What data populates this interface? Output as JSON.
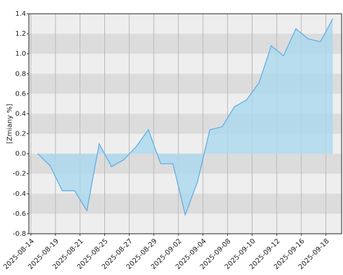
{
  "chart_data": {
    "type": "area",
    "y_label": "[Zmiany %]",
    "categories": [
      "2025-08-14",
      null,
      "2025-08-19",
      null,
      "2025-08-21",
      null,
      "2025-08-25",
      null,
      "2025-08-27",
      null,
      "2025-08-29",
      null,
      "2025-09-02",
      null,
      "2025-09-04",
      null,
      "2025-09-08",
      null,
      "2025-09-10",
      null,
      "2025-09-12",
      null,
      "2025-09-16",
      null,
      "2025-09-18"
    ],
    "values": [
      0,
      -0.12,
      -0.37,
      -0.37,
      -0.57,
      0.1,
      -0.13,
      -0.06,
      0.07,
      0.24,
      -0.1,
      -0.1,
      -0.61,
      -0.28,
      0.24,
      0.27,
      0.47,
      0.54,
      0.71,
      1.08,
      0.98,
      1.25,
      1.15,
      1.12,
      1.35
    ],
    "color": "#5aaae6",
    "fill": "#a9d8ee",
    "ylim": [
      -0.8,
      1.4
    ],
    "yticks": [
      -0.8,
      -0.6,
      -0.4,
      -0.2,
      {
        "value": 0,
        "label": "0.0"
      },
      0.2,
      0.4,
      0.6,
      0.8,
      {
        "value": 1,
        "label": "1.0"
      },
      1.2,
      1.4
    ],
    "grid": true
  }
}
